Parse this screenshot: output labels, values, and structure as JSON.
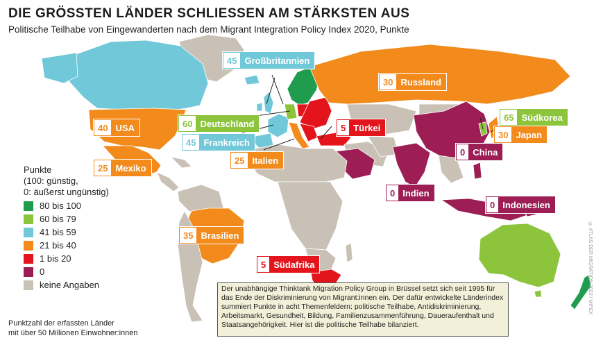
{
  "title": "DIE GRÖSSTEN LÄNDER SCHLIESSEN AM STÄRKSTEN AUS",
  "subtitle": "Politische Teilhabe von Eingewanderten nach dem Migrant Integration Policy Index 2020, Punkte",
  "colors": {
    "g80": "#1f9c4e",
    "g60": "#8cc43c",
    "g41": "#70c8d8",
    "g21": "#f28a1c",
    "g1": "#e3141c",
    "g0": "#9c1e55",
    "none": "#c9c1b5",
    "ocean": "#ffffff"
  },
  "legend": {
    "title_lines": [
      "Punkte",
      "(100: günstig,",
      "0: äußerst ungünstig)"
    ],
    "items": [
      {
        "label": "80 bis 100",
        "color": "#1f9c4e"
      },
      {
        "label": "60 bis 79",
        "color": "#8cc43c"
      },
      {
        "label": "41 bis 59",
        "color": "#70c8d8"
      },
      {
        "label": "21 bis 40",
        "color": "#f28a1c"
      },
      {
        "label": "1 bis 20",
        "color": "#e3141c"
      },
      {
        "label": "0",
        "color": "#9c1e55"
      },
      {
        "label": "keine Angaben",
        "color": "#c9c1b5"
      }
    ]
  },
  "countries": [
    {
      "name": "Großbritannien",
      "score": "45"
    },
    {
      "name": "Russland",
      "score": "30"
    },
    {
      "name": "Südkorea",
      "score": "65"
    },
    {
      "name": "Japan",
      "score": "30"
    },
    {
      "name": "USA",
      "score": "40"
    },
    {
      "name": "Deutschland",
      "score": "60"
    },
    {
      "name": "Türkei",
      "score": "5"
    },
    {
      "name": "China",
      "score": "0"
    },
    {
      "name": "Frankreich",
      "score": "45"
    },
    {
      "name": "Mexiko",
      "score": "25"
    },
    {
      "name": "Italien",
      "score": "25"
    },
    {
      "name": "Indien",
      "score": "0"
    },
    {
      "name": "Indonesien",
      "score": "0"
    },
    {
      "name": "Brasilien",
      "score": "35"
    },
    {
      "name": "Südafrika",
      "score": "5"
    }
  ],
  "footnote_lines": [
    "Punktzahl der erfassten Länder",
    "mit über 50 Millionen Einwohner:innen"
  ],
  "info_text": "Der unabhängige Thinktank Migration Policy Group in Brüssel setzt sich seit 1995 für das Ende der Diskriminierung von Migrant:innen ein. Der dafür entwickelte Länderindex summiert Punkte in acht Themenfeldern: politische Teilhabe, Antidiskriminierung, Arbeitsmarkt, Gesundheit, Bildung, Familienzusammenführung, Daueraufenthalt und Staatsangehörigkeit. Hier ist die politische Teilhabe bilanziert.",
  "credit": "© ATLAS DER MIGRATION 2022 / MIPEX"
}
